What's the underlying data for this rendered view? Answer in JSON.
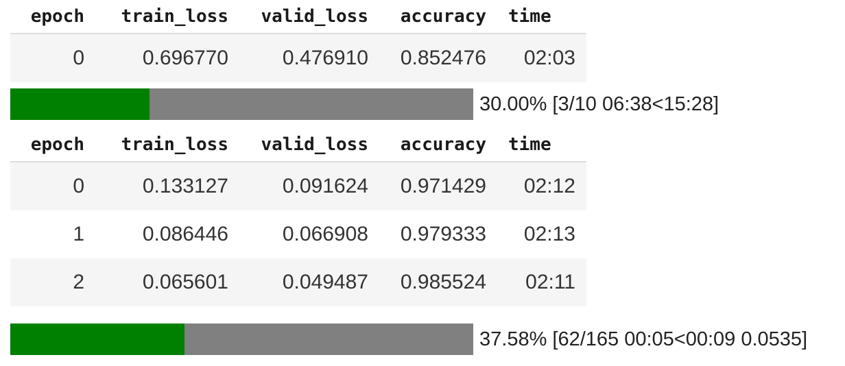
{
  "columns": [
    "epoch",
    "train_loss",
    "valid_loss",
    "accuracy",
    "time"
  ],
  "table1": {
    "rows": [
      [
        "0",
        "0.696770",
        "0.476910",
        "0.852476",
        "02:03"
      ]
    ]
  },
  "progress1": {
    "fraction": 0.3,
    "text": "30.00% [3/10 06:38<15:28]",
    "fill_color": "#008000",
    "track_color": "#808080"
  },
  "table2": {
    "rows": [
      [
        "0",
        "0.133127",
        "0.091624",
        "0.971429",
        "02:12"
      ],
      [
        "1",
        "0.086446",
        "0.066908",
        "0.979333",
        "02:13"
      ],
      [
        "2",
        "0.065601",
        "0.049487",
        "0.985524",
        "02:11"
      ]
    ]
  },
  "progress2": {
    "fraction": 0.3758,
    "text": "37.58% [62/165 00:05<00:09 0.0535]",
    "fill_color": "#008000",
    "track_color": "#808080"
  }
}
